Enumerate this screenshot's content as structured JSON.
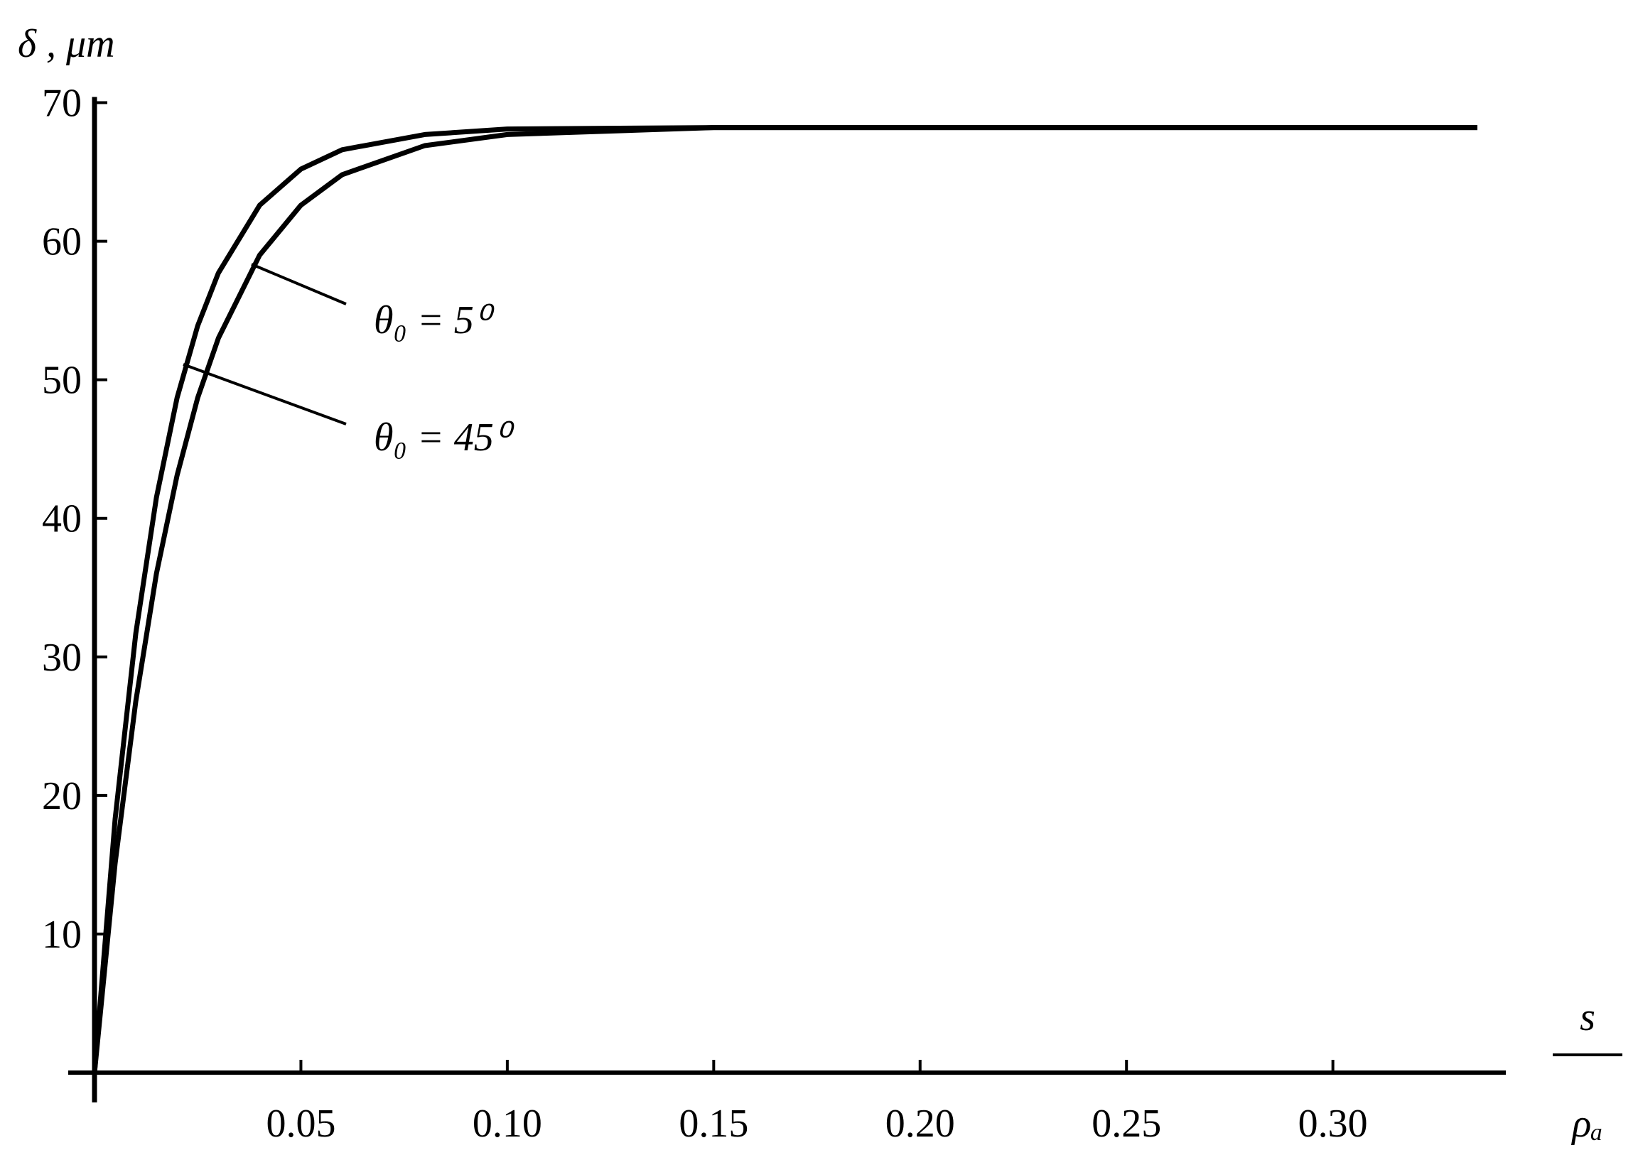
{
  "chart_data": {
    "type": "line",
    "y_label": "δ , μm",
    "x_label_numerator": "s",
    "x_label_denominator": "ρₐ",
    "x": [
      0,
      0.005,
      0.01,
      0.015,
      0.02,
      0.025,
      0.03,
      0.04,
      0.05,
      0.06,
      0.08,
      0.1,
      0.15,
      0.2,
      0.25,
      0.335
    ],
    "series": [
      {
        "name": "θ₀ = 5⁰",
        "color": "#000000",
        "values": [
          0,
          15.1,
          26.8,
          36.0,
          43.1,
          48.7,
          53.0,
          59.0,
          62.6,
          64.8,
          66.9,
          67.7,
          68.2,
          68.2,
          68.2,
          68.2
        ]
      },
      {
        "name": "θ₀ = 45⁰",
        "color": "#000000",
        "values": [
          0,
          18.3,
          31.7,
          41.5,
          48.7,
          53.9,
          57.7,
          62.6,
          65.2,
          66.6,
          67.7,
          68.1,
          68.2,
          68.2,
          68.2,
          68.2
        ]
      }
    ],
    "xlim": [
      0,
      0.34
    ],
    "ylim": [
      0,
      70
    ],
    "xticks": [
      0.05,
      {
        "value": 0.1,
        "label": "0.10"
      },
      0.15,
      {
        "value": 0.2,
        "label": "0.20"
      },
      0.25,
      {
        "value": 0.3,
        "label": "0.30"
      }
    ],
    "yticks": [
      10,
      20,
      30,
      40,
      50,
      60,
      70
    ],
    "grid": false
  }
}
